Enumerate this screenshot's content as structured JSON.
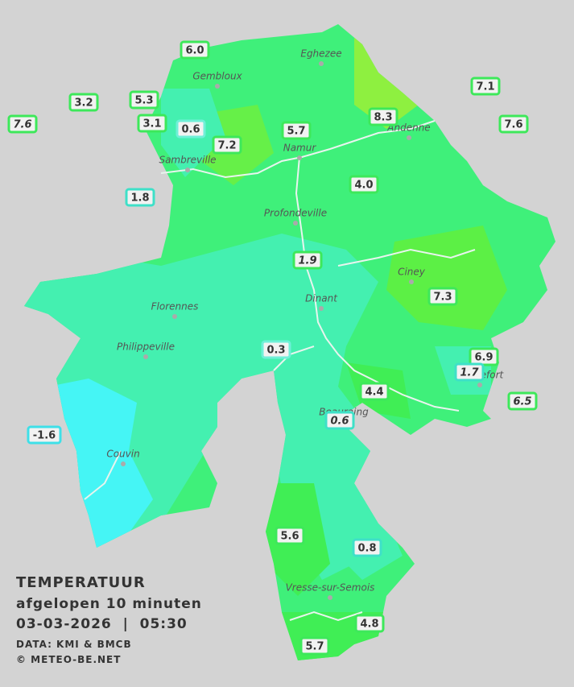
{
  "title": {
    "line1": "TEMPERATUUR",
    "line2": "afgelopen 10 minuten",
    "line3": "03-03-2026  |  05:30",
    "source": "DATA: KMI & BMCB",
    "copyright": "© METEO-BE.NET"
  },
  "towns": [
    "Eghezee",
    "Gembloux",
    "Andenne",
    "Namur",
    "Sambreville",
    "Profondeville",
    "Ciney",
    "Dinant",
    "Florennes",
    "Philippeville",
    "Rochefort",
    "Beauraing",
    "Couvin",
    "Vresse-sur-Semois"
  ],
  "stations": [
    {
      "label": "6.0",
      "italic": false,
      "color": "#3de85a"
    },
    {
      "label": "3.2",
      "italic": false,
      "color": "#3de85a"
    },
    {
      "label": "5.3",
      "italic": false,
      "color": "#3de85a"
    },
    {
      "label": "7.6",
      "italic": true,
      "color": "#3de85a"
    },
    {
      "label": "3.1",
      "italic": false,
      "color": "#3de85a"
    },
    {
      "label": "0.6",
      "italic": false,
      "color": "#6ff0d8"
    },
    {
      "label": "7.2",
      "italic": false,
      "color": "#3de85a"
    },
    {
      "label": "5.7",
      "italic": false,
      "color": "#3de85a"
    },
    {
      "label": "8.3",
      "italic": false,
      "color": "#3de85a"
    },
    {
      "label": "7.1",
      "italic": false,
      "color": "#3de85a"
    },
    {
      "label": "7.6",
      "italic": false,
      "color": "#3de85a"
    },
    {
      "label": "4.0",
      "italic": false,
      "color": "#3de85a"
    },
    {
      "label": "1.8",
      "italic": false,
      "color": "#3ee0c8"
    },
    {
      "label": "1.9",
      "italic": true,
      "color": "#3de85a"
    },
    {
      "label": "7.3",
      "italic": false,
      "color": "#3de85a"
    },
    {
      "label": "0.3",
      "italic": false,
      "color": "#6ff0d8"
    },
    {
      "label": "6.9",
      "italic": false,
      "color": "#3de85a"
    },
    {
      "label": "1.7",
      "italic": true,
      "color": "#3ee0c8"
    },
    {
      "label": "4.4",
      "italic": false,
      "color": "#3de85a"
    },
    {
      "label": "6.5",
      "italic": true,
      "color": "#3de85a"
    },
    {
      "label": "0.6",
      "italic": true,
      "color": "#3ee0c8"
    },
    {
      "label": "-1.6",
      "italic": false,
      "color": "#3ee0e8"
    },
    {
      "label": "5.6",
      "italic": false,
      "color": "#3de85a"
    },
    {
      "label": "0.8",
      "italic": false,
      "color": "#3ee0c8"
    },
    {
      "label": "4.8",
      "italic": false,
      "color": "#3de85a"
    },
    {
      "label": "5.7",
      "italic": false,
      "color": "#3de85a"
    }
  ]
}
